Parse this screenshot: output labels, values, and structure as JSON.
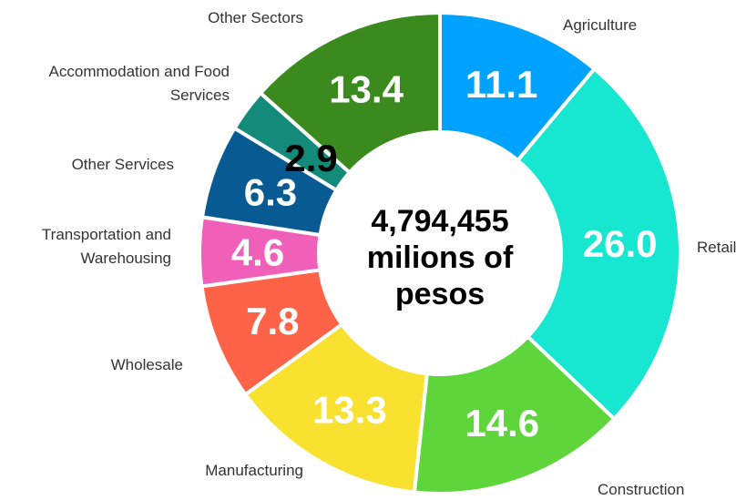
{
  "chart_data": {
    "type": "pie",
    "donut": true,
    "center_text": [
      "4,794,455",
      "milions of",
      "pesos"
    ],
    "slices": [
      {
        "label": "Agriculture",
        "value": 11.1,
        "value_label": "11.1",
        "color": "#00A2FF",
        "text_color": "#ffffff"
      },
      {
        "label": "Retail",
        "value": 26.0,
        "value_label": "26.0",
        "color": "#17E6D0",
        "text_color": "#ffffff"
      },
      {
        "label": "Construction",
        "value": 14.6,
        "value_label": "14.6",
        "color": "#5ED53B",
        "text_color": "#ffffff"
      },
      {
        "label": "Manufacturing",
        "value": 13.3,
        "value_label": "13.3",
        "color": "#F8E12F",
        "text_color": "#ffffff"
      },
      {
        "label": "Wholesale",
        "value": 7.8,
        "value_label": "7.8",
        "color": "#FF6347",
        "text_color": "#ffffff"
      },
      {
        "label": "Transportation and|Warehousing",
        "value": 4.6,
        "value_label": "4.6",
        "color": "#F060B8",
        "text_color": "#ffffff"
      },
      {
        "label": "Other Services",
        "value": 6.3,
        "value_label": "6.3",
        "color": "#085A92",
        "text_color": "#ffffff"
      },
      {
        "label": "Accommodation and Food|Services",
        "value": 2.9,
        "value_label": "2.9",
        "color": "#138A7A",
        "text_color": "#000000"
      },
      {
        "label": "Other Sectors",
        "value": 13.4,
        "value_label": "13.4",
        "color": "#3A8A1E",
        "text_color": "#ffffff"
      }
    ]
  }
}
